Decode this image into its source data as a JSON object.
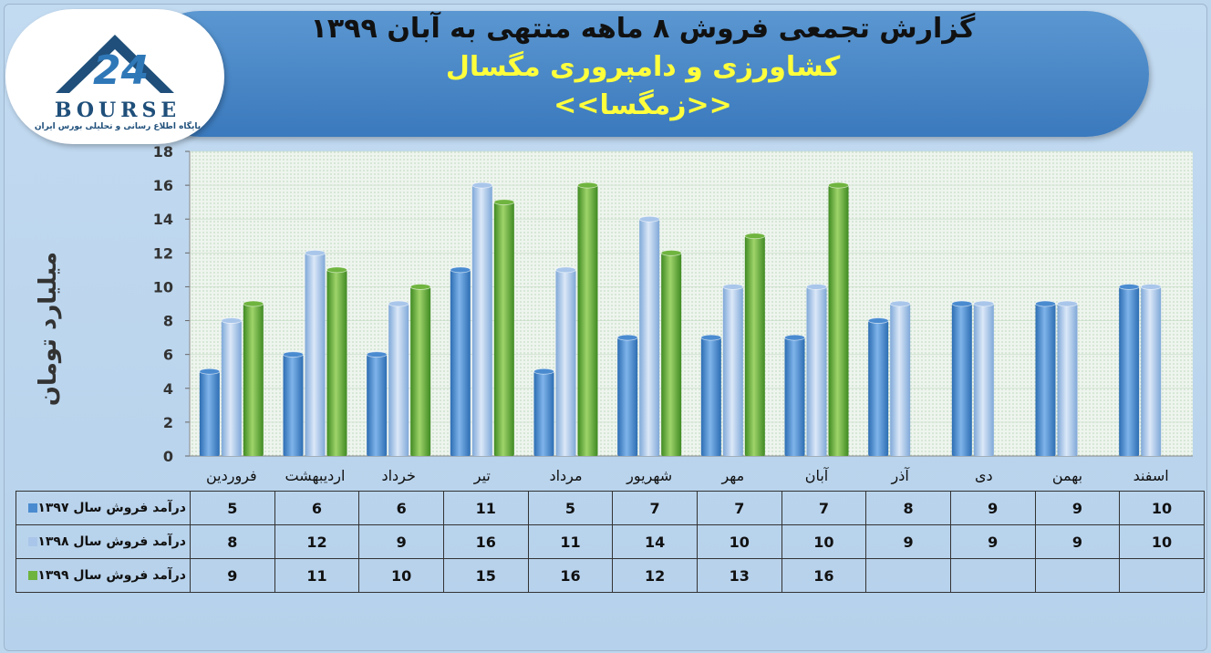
{
  "header": {
    "title": "گزارش تجمعی فروش ۸ ماهه منتهی به آبان ۱۳۹۹",
    "company": "کشاورزی و دامپروری مگسال",
    "symbol": "<<زمگسا>>"
  },
  "logo": {
    "word": "BOURSE",
    "tagline": "پایگاه اطلاع رسانی و تحلیلی بورس ایران",
    "number": "24"
  },
  "chart_data": {
    "type": "bar",
    "title": "گزارش تجمعی فروش ۸ ماهه منتهی به آبان ۱۳۹۹",
    "ylabel": "میلیارد تومان",
    "xlabel": "",
    "ylim": [
      0,
      18
    ],
    "yticks": [
      0,
      2,
      4,
      6,
      8,
      10,
      12,
      14,
      16,
      18
    ],
    "grid": true,
    "categories": [
      "فروردین",
      "اردیبهشت",
      "خرداد",
      "تیر",
      "مرداد",
      "شهریور",
      "مهر",
      "آبان",
      "آذر",
      "دی",
      "بهمن",
      "اسفند"
    ],
    "series": [
      {
        "name": "درآمد فروش سال ۱۳۹۷",
        "color": "#4a8bd0",
        "values": [
          5,
          6,
          6,
          11,
          5,
          7,
          7,
          7,
          8,
          9,
          9,
          10
        ]
      },
      {
        "name": "درآمد فروش سال ۱۳۹۸",
        "color": "#a9c6ea",
        "values": [
          8,
          12,
          9,
          16,
          11,
          14,
          10,
          10,
          9,
          9,
          9,
          10
        ]
      },
      {
        "name": "درآمد فروش سال ۱۳۹۹",
        "color": "#6fb43f",
        "values": [
          9,
          11,
          10,
          15,
          16,
          12,
          13,
          16,
          null,
          null,
          null,
          null
        ]
      }
    ]
  }
}
